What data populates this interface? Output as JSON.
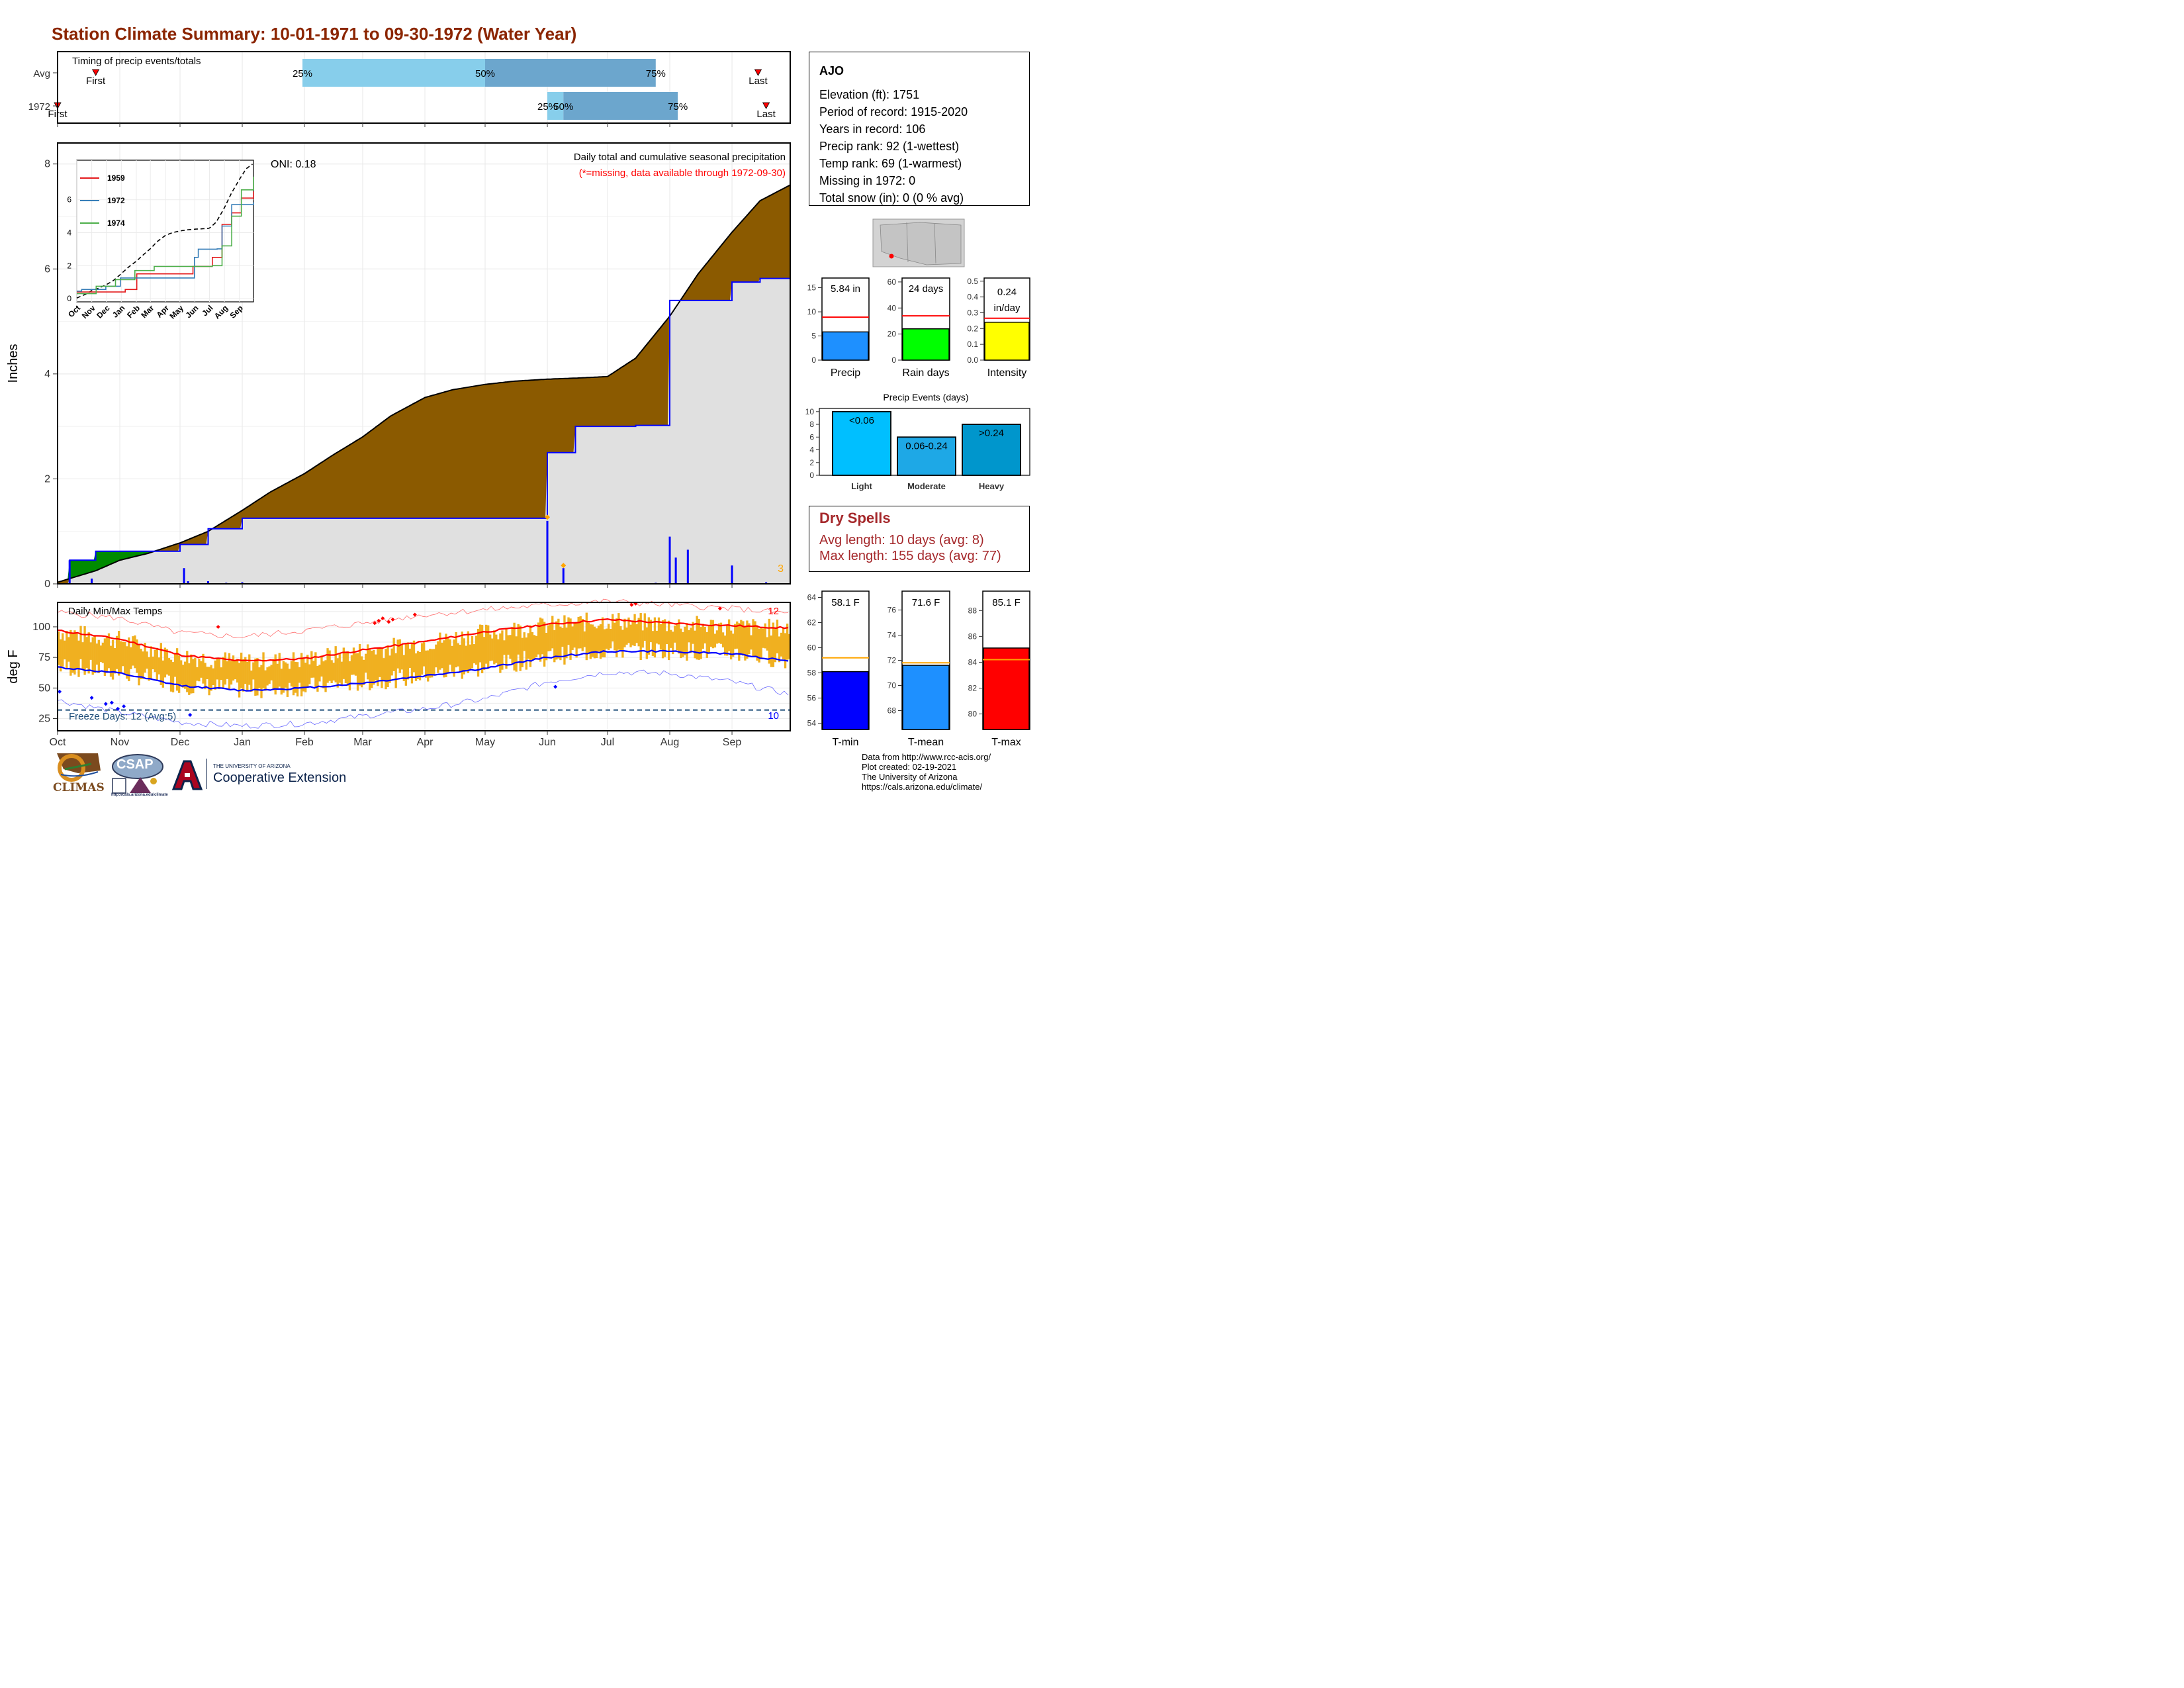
{
  "title": "Station Climate Summary: 10-01-1971 to 09-30-1972 (Water Year)",
  "timing": {
    "title": "Timing of precip events/totals",
    "rows": [
      {
        "label": "Avg",
        "pct25": "25%",
        "pct50": "50%",
        "pct75": "75%",
        "first": "First",
        "last": "Last"
      },
      {
        "label": "1972",
        "pct25": "25%",
        "pct50": "50%",
        "pct75": "75%",
        "first": "First",
        "last": "Last"
      }
    ],
    "colors": {
      "q1": "#87CEEB",
      "q2": "#6CA6CD",
      "marker": "#FF0000"
    }
  },
  "precip_panel": {
    "ylabel": "Inches",
    "subtitle": "Daily total and cumulative seasonal precipitation",
    "missing_note": "(*=missing, data available through 1972-09-30)",
    "oni": "ONI: 0.18",
    "missing_count": "3",
    "yticks": [
      "0",
      "2",
      "4",
      "6",
      "8"
    ],
    "colors": {
      "avg_fill": "#8B5A00",
      "year_fill": "#E0E0E0",
      "wet_fill": "#008B00",
      "line": "#0000FF",
      "daily": "#0000FF",
      "marker": "#FFA500"
    }
  },
  "inset": {
    "months": [
      "Oct",
      "Nov",
      "Dec",
      "Jan",
      "Feb",
      "Mar",
      "Apr",
      "May",
      "Jun",
      "Jul",
      "Aug",
      "Sep"
    ],
    "yticks": [
      "0",
      "2",
      "4",
      "6"
    ],
    "legend": [
      {
        "name": "1959",
        "color": "#E41A1C"
      },
      {
        "name": "1972",
        "color": "#377EB8"
      },
      {
        "name": "1974",
        "color": "#4DAF4A"
      }
    ]
  },
  "temp_panel": {
    "title": "Daily Min/Max Temps",
    "ylabel": "deg F",
    "yticks": [
      "25",
      "50",
      "75",
      "100"
    ],
    "freeze_label": "Freeze Days: 12 (Avg:5)",
    "record_high_count": "12",
    "record_low_count": "10",
    "colors": {
      "bar": "#F0B020",
      "avg_max": "#FF0000",
      "avg_min": "#0000FF",
      "freeze": "#1F4E79"
    }
  },
  "x_months": [
    "Oct",
    "Nov",
    "Dec",
    "Jan",
    "Feb",
    "Mar",
    "Apr",
    "May",
    "Jun",
    "Jul",
    "Aug",
    "Sep"
  ],
  "station": {
    "name": "AJO",
    "lines": [
      "Elevation (ft): 1751",
      "Period of record: 1915-2020",
      "Years in record: 106",
      "Precip rank: 92 (1-wettest)",
      "Temp rank: 69 (1-warmest)",
      "Missing in 1972: 0",
      "Total snow (in): 0 (0 % avg)"
    ]
  },
  "mini_bars": [
    {
      "label": "Precip",
      "value_text": "5.84 in",
      "yticks": [
        "0",
        "5",
        "10",
        "15"
      ],
      "color": "#1E90FF"
    },
    {
      "label": "Rain days",
      "value_text": "24 days",
      "yticks": [
        "0",
        "20",
        "40",
        "60"
      ],
      "color": "#00FF00"
    },
    {
      "label": "Intensity",
      "value_text": "0.24 in/day",
      "value_line1": "0.24",
      "value_line2": "in/day",
      "yticks": [
        "0.0",
        "0.1",
        "0.2",
        "0.3",
        "0.4",
        "0.5"
      ],
      "color": "#FFFF00"
    }
  ],
  "events": {
    "title": "Precip Events (days)",
    "categories": [
      "Light",
      "Moderate",
      "Heavy"
    ],
    "bar_labels": [
      "<0.06",
      "0.06-0.24",
      ">0.24"
    ],
    "colors": [
      "#00BFFF",
      "#1EA8E6",
      "#0096CC"
    ],
    "yticks": [
      "0",
      "2",
      "4",
      "6",
      "8",
      "10"
    ]
  },
  "dry_spells": {
    "title": "Dry Spells",
    "avg": "Avg length: 10 days (avg: 8)",
    "max": "Max length: 155 days (avg: 77)"
  },
  "temp_bars": [
    {
      "label": "T-min",
      "value_text": "58.1 F",
      "yticks": [
        "54",
        "56",
        "58",
        "60",
        "62",
        "64"
      ],
      "color": "#0000FF"
    },
    {
      "label": "T-mean",
      "value_text": "71.6 F",
      "yticks": [
        "68",
        "70",
        "72",
        "74",
        "76"
      ],
      "color": "#1E90FF"
    },
    {
      "label": "T-max",
      "value_text": "85.1 F",
      "yticks": [
        "80",
        "82",
        "84",
        "86",
        "88"
      ],
      "color": "#FF0000"
    }
  ],
  "credits": [
    "Data from http://www.rcc-acis.org/",
    "Plot created: 02-19-2021",
    "The University of Arizona",
    "https://cals.arizona.edu/climate/"
  ],
  "logos": {
    "climas": "CLIMAS",
    "csap": "CSAP",
    "csap_url": "http://cals.arizona.edu/climate",
    "ua_small": "THE UNIVERSITY OF ARIZONA",
    "ua_big": "Cooperative Extension"
  },
  "chart_data": [
    {
      "type": "bar",
      "title": "Timing of precip events/totals",
      "categories": [
        "Avg",
        "1972"
      ],
      "series": [
        {
          "name": "25%",
          "values": [
            "1972-01-31",
            "1972-06-01"
          ]
        },
        {
          "name": "50%",
          "values": [
            "1972-05-01",
            "1972-06-09"
          ]
        },
        {
          "name": "75%",
          "values": [
            "1972-07-25",
            "1972-08-05"
          ]
        },
        {
          "name": "First",
          "values": [
            "1971-10-20",
            "1971-10-01"
          ]
        },
        {
          "name": "Last",
          "values": [
            "1972-09-14",
            "1972-09-18"
          ]
        }
      ]
    },
    {
      "type": "area",
      "title": "Daily total and cumulative seasonal precipitation",
      "ylabel": "Inches",
      "ylim": [
        0,
        8.4
      ],
      "x": [
        "1971-10-01",
        "1971-10-07",
        "1971-10-20",
        "1971-11-01",
        "1971-11-15",
        "1971-12-01",
        "1971-12-15",
        "1972-01-01",
        "1972-01-15",
        "1972-02-01",
        "1972-02-15",
        "1972-03-01",
        "1972-03-15",
        "1972-04-01",
        "1972-04-15",
        "1972-05-01",
        "1972-05-15",
        "1972-06-01",
        "1972-06-15",
        "1972-07-01",
        "1972-07-15",
        "1972-08-01",
        "1972-08-15",
        "1972-09-01",
        "1972-09-15",
        "1972-09-30"
      ],
      "series": [
        {
          "name": "avg",
          "values": [
            0.03,
            0.1,
            0.25,
            0.45,
            0.58,
            0.78,
            1.0,
            1.4,
            1.75,
            2.1,
            2.45,
            2.8,
            3.2,
            3.55,
            3.7,
            3.8,
            3.86,
            3.9,
            3.92,
            3.95,
            4.3,
            5.1,
            5.9,
            6.7,
            7.3,
            7.6
          ]
        },
        {
          "name": "1972",
          "values": [
            0.0,
            0.45,
            0.62,
            0.62,
            0.62,
            0.75,
            1.05,
            1.25,
            1.25,
            1.25,
            1.25,
            1.25,
            1.25,
            1.25,
            1.25,
            1.25,
            1.25,
            2.5,
            3.0,
            3.0,
            3.02,
            5.4,
            5.4,
            5.75,
            5.82,
            5.84
          ]
        }
      ],
      "daily": [
        {
          "x": "1971-10-07",
          "y": 0.45
        },
        {
          "x": "1971-10-18",
          "y": 0.1
        },
        {
          "x": "1971-12-03",
          "y": 0.3
        },
        {
          "x": "1971-12-05",
          "y": 0.05
        },
        {
          "x": "1971-12-15",
          "y": 0.05
        },
        {
          "x": "1971-12-24",
          "y": 0.02
        },
        {
          "x": "1972-01-01",
          "y": 0.03
        },
        {
          "x": "1972-06-01",
          "y": 1.2
        },
        {
          "x": "1972-06-09",
          "y": 0.3
        },
        {
          "x": "1972-07-25",
          "y": 0.02
        },
        {
          "x": "1972-08-01",
          "y": 0.9
        },
        {
          "x": "1972-08-04",
          "y": 0.5
        },
        {
          "x": "1972-08-10",
          "y": 0.65
        },
        {
          "x": "1972-09-01",
          "y": 0.35
        },
        {
          "x": "1972-09-18",
          "y": 0.03
        }
      ]
    },
    {
      "type": "line",
      "title": "Daily Min/Max Temps",
      "ylabel": "deg F",
      "ylim": [
        15,
        120
      ],
      "x": [
        "1971-10-01",
        "1971-11-01",
        "1971-12-01",
        "1972-01-01",
        "1972-02-01",
        "1972-03-01",
        "1972-04-01",
        "1972-05-01",
        "1972-06-01",
        "1972-07-01",
        "1972-08-01",
        "1972-09-01",
        "1972-09-30"
      ],
      "series": [
        {
          "name": "avg max",
          "values": [
            97,
            90,
            77,
            72,
            74,
            81,
            88,
            96,
            102,
            106,
            103,
            101,
            99
          ]
        },
        {
          "name": "avg min",
          "values": [
            67,
            62,
            52,
            48,
            50,
            54,
            60,
            66,
            75,
            80,
            80,
            78,
            72
          ]
        },
        {
          "name": "record high",
          "values": [
            112,
            107,
            95,
            92,
            97,
            103,
            110,
            114,
            118,
            121,
            118,
            115,
            111
          ]
        },
        {
          "name": "record low",
          "values": [
            40,
            30,
            22,
            19,
            21,
            27,
            33,
            41,
            55,
            63,
            62,
            55,
            45
          ]
        }
      ],
      "freeze_line": 32
    },
    {
      "type": "bar",
      "categories": [
        "Precip"
      ],
      "values": [
        5.84
      ],
      "reference": 8.9,
      "ylim": [
        0,
        17
      ]
    },
    {
      "type": "bar",
      "categories": [
        "Rain days"
      ],
      "values": [
        24
      ],
      "reference": 34,
      "ylim": [
        0,
        63
      ]
    },
    {
      "type": "bar",
      "categories": [
        "Intensity"
      ],
      "values": [
        0.24
      ],
      "reference": 0.265,
      "ylim": [
        0,
        0.52
      ]
    },
    {
      "type": "bar",
      "title": "Precip Events (days)",
      "categories": [
        "Light",
        "Moderate",
        "Heavy"
      ],
      "values": [
        10,
        6,
        8
      ],
      "ylim": [
        0,
        10.5
      ]
    },
    {
      "type": "bar",
      "categories": [
        "T-min"
      ],
      "values": [
        58.1
      ],
      "reference": 59.2,
      "ylim": [
        53.5,
        64.5
      ]
    },
    {
      "type": "bar",
      "categories": [
        "T-mean"
      ],
      "values": [
        71.6
      ],
      "reference": 71.8,
      "ylim": [
        66.5,
        77.5
      ]
    },
    {
      "type": "bar",
      "categories": [
        "T-max"
      ],
      "values": [
        85.1
      ],
      "reference": 84.2,
      "ylim": [
        78.8,
        89.5
      ]
    }
  ]
}
